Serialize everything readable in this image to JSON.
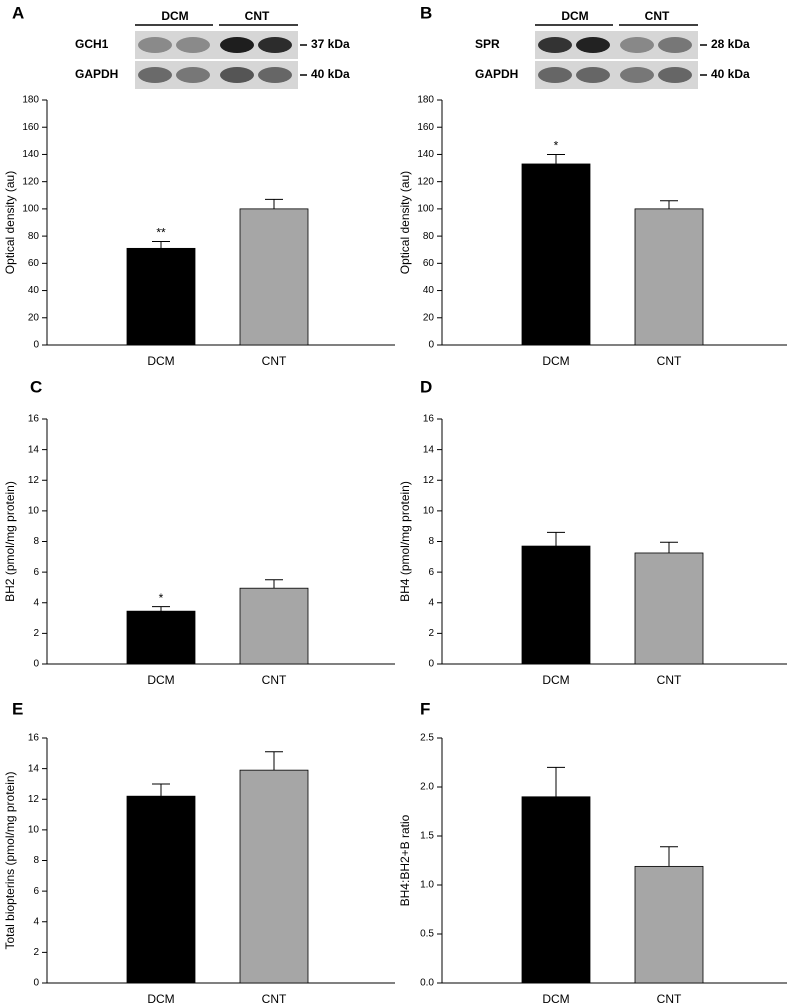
{
  "chart_data": [
    {
      "type": "bar",
      "panel": "A",
      "ylabel": "Optical density (au)",
      "categories": [
        "DCM",
        "CNT"
      ],
      "values": [
        71,
        100
      ],
      "errors": [
        5,
        7
      ],
      "colors": [
        "#000000",
        "#a6a6a6"
      ],
      "significance": [
        "**",
        null
      ],
      "ylim": [
        0,
        180
      ],
      "yticks": [
        0,
        20,
        40,
        60,
        80,
        100,
        120,
        140,
        160,
        180
      ],
      "blot": {
        "groups": [
          "DCM",
          "CNT"
        ],
        "rows": [
          {
            "protein": "GCH1",
            "size": "37 kDa"
          },
          {
            "protein": "GAPDH",
            "size": "40 kDa"
          }
        ]
      }
    },
    {
      "type": "bar",
      "panel": "B",
      "ylabel": "Optical density (au)",
      "categories": [
        "DCM",
        "CNT"
      ],
      "values": [
        133,
        100
      ],
      "errors": [
        7,
        6
      ],
      "colors": [
        "#000000",
        "#a6a6a6"
      ],
      "significance": [
        "*",
        null
      ],
      "ylim": [
        0,
        180
      ],
      "yticks": [
        0,
        20,
        40,
        60,
        80,
        100,
        120,
        140,
        160,
        180
      ],
      "blot": {
        "groups": [
          "DCM",
          "CNT"
        ],
        "rows": [
          {
            "protein": "SPR",
            "size": "28 kDa"
          },
          {
            "protein": "GAPDH",
            "size": "40 kDa"
          }
        ]
      }
    },
    {
      "type": "bar",
      "panel": "C",
      "ylabel": "BH2 (pmol/mg protein)",
      "categories": [
        "DCM",
        "CNT"
      ],
      "values": [
        3.45,
        4.95
      ],
      "errors": [
        0.3,
        0.55
      ],
      "colors": [
        "#000000",
        "#a6a6a6"
      ],
      "significance": [
        "*",
        null
      ],
      "ylim": [
        0,
        16
      ],
      "yticks": [
        0,
        2,
        4,
        6,
        8,
        10,
        12,
        14,
        16
      ]
    },
    {
      "type": "bar",
      "panel": "D",
      "ylabel": "BH4 (pmol/mg protein)",
      "categories": [
        "DCM",
        "CNT"
      ],
      "values": [
        7.7,
        7.25
      ],
      "errors": [
        0.9,
        0.7
      ],
      "colors": [
        "#000000",
        "#a6a6a6"
      ],
      "ylim": [
        0,
        16
      ],
      "yticks": [
        0,
        2,
        4,
        6,
        8,
        10,
        12,
        14,
        16
      ]
    },
    {
      "type": "bar",
      "panel": "E",
      "ylabel": "Total biopterins (pmol/mg protein)",
      "categories": [
        "DCM",
        "CNT"
      ],
      "values": [
        12.2,
        13.9
      ],
      "errors": [
        0.8,
        1.2
      ],
      "colors": [
        "#000000",
        "#a6a6a6"
      ],
      "ylim": [
        0,
        16
      ],
      "yticks": [
        0,
        2,
        4,
        6,
        8,
        10,
        12,
        14,
        16
      ]
    },
    {
      "type": "bar",
      "panel": "F",
      "ylabel": "BH4:BH2+B ratio",
      "categories": [
        "DCM",
        "CNT"
      ],
      "values": [
        1.9,
        1.19
      ],
      "errors": [
        0.3,
        0.2
      ],
      "colors": [
        "#000000",
        "#a6a6a6"
      ],
      "ylim": [
        0,
        2.5
      ],
      "yticks": [
        {
          "value": 0,
          "label": "0.0"
        },
        0.5,
        {
          "value": 1,
          "label": "1.0"
        },
        1.5,
        {
          "value": 2,
          "label": "2.0"
        },
        2.5
      ]
    }
  ]
}
